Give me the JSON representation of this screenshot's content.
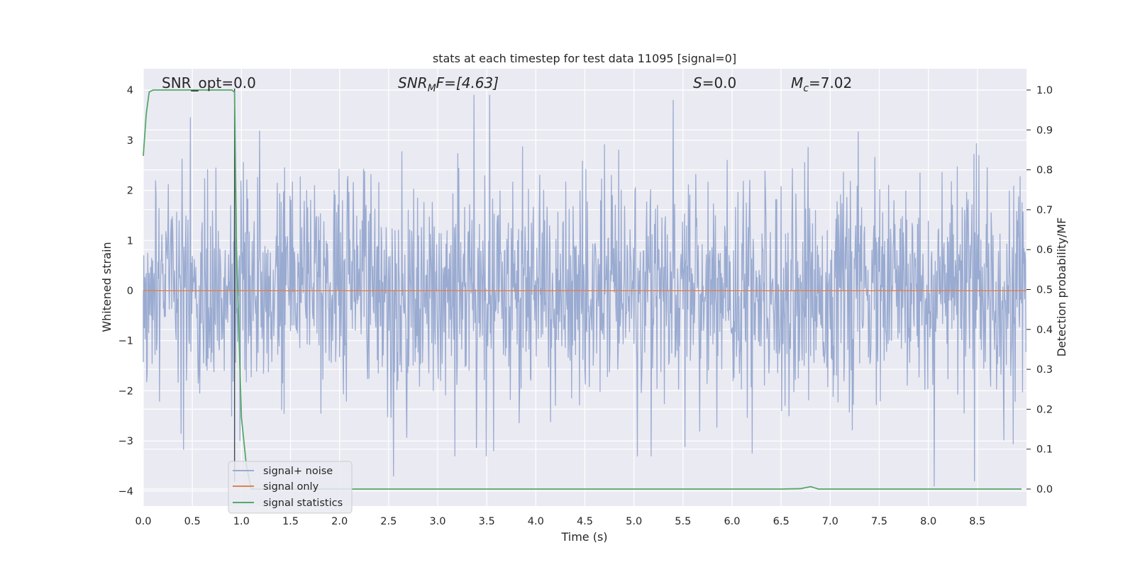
{
  "chart_data": {
    "type": "line",
    "title": "stats at each timestep for test data 11095 [signal=0]",
    "xlabel": "Time (s)",
    "ylabel_left": "Whitened strain",
    "ylabel_right": "Detection probability/MF",
    "xlim": [
      0.0,
      9.0
    ],
    "ylim_left": [
      -4.35,
      4.4
    ],
    "ylim_right": [
      -0.048,
      1.048
    ],
    "x_ticks": [
      "0.0",
      "0.5",
      "1.0",
      "1.5",
      "2.0",
      "2.5",
      "3.0",
      "3.5",
      "4.0",
      "4.5",
      "5.0",
      "5.5",
      "6.0",
      "6.5",
      "7.0",
      "7.5",
      "8.0",
      "8.5"
    ],
    "y_ticks_left": [
      "4",
      "3",
      "2",
      "1",
      "0",
      "−1",
      "−2",
      "−3",
      "−4"
    ],
    "y_ticks_right": [
      "1.0",
      "0.9",
      "0.8",
      "0.7",
      "0.6",
      "0.5",
      "0.4",
      "0.3",
      "0.2",
      "0.1",
      "0.0"
    ],
    "grid": true,
    "legend_placement": "lower-left",
    "colors": {
      "background": "#eaeaf2",
      "grid": "#ffffff",
      "noise": "#9aabd1",
      "signal_only": "#dd8452",
      "statistics": "#55a868"
    },
    "annotations": {
      "snr_opt": "SNR_opt=0.0",
      "snr_mf_base": "SNR",
      "snr_mf_sub": "M",
      "snr_mf_rest": "F=[4.63]",
      "s_base": "S",
      "s_rest": "=0.0",
      "mc_base": "M",
      "mc_sub": "c",
      "mc_rest": "=7.02"
    },
    "series": [
      {
        "name": "signal+ noise",
        "axis": "left",
        "description_values": "whitened noise, approx. ±1.6 typical with peaks to ±3.9",
        "peaks": [
          [
            0.48,
            3.45
          ],
          [
            3.37,
            3.9
          ],
          [
            3.53,
            3.9
          ],
          [
            5.4,
            3.8
          ],
          [
            8.06,
            -3.9
          ],
          [
            8.47,
            -3.8
          ],
          [
            2.55,
            -3.7
          ]
        ]
      },
      {
        "name": "signal only",
        "axis": "left",
        "x": [
          0.0,
          9.0
        ],
        "y": [
          0.0,
          0.0
        ]
      },
      {
        "name": "signal statistics",
        "axis": "right",
        "x": [
          0.0,
          0.03,
          0.06,
          0.1,
          0.2,
          0.4,
          0.6,
          0.8,
          0.9,
          0.93,
          0.95,
          1.0,
          1.05,
          1.1,
          1.5,
          2.0,
          3.0,
          4.0,
          5.0,
          6.0,
          6.5,
          6.7,
          6.76,
          6.8,
          6.84,
          6.88,
          7.0,
          7.5,
          8.0,
          8.5,
          8.95
        ],
        "y": [
          0.835,
          0.94,
          0.995,
          1.0,
          1.0,
          1.0,
          1.0,
          1.0,
          1.0,
          0.995,
          0.6,
          0.18,
          0.06,
          0.0,
          0.0,
          0.0,
          0.0,
          0.0,
          0.0,
          0.0,
          0.0,
          0.001,
          0.004,
          0.006,
          0.003,
          0.0,
          0.0,
          0.0,
          0.0,
          0.0,
          0.0
        ]
      }
    ],
    "vline_x": 0.93
  }
}
